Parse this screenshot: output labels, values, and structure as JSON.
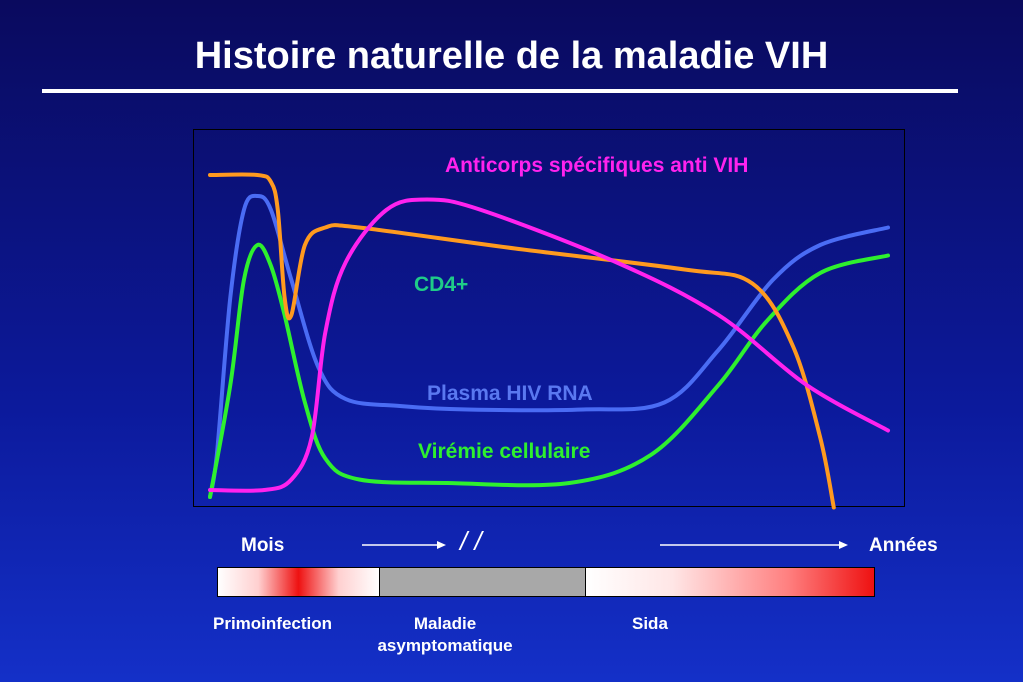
{
  "title": "Histoire naturelle de la maladie VIH",
  "chart_data": {
    "type": "line",
    "title": "Histoire naturelle de la maladie VIH",
    "xlabel": "",
    "ylabel": "",
    "x_range": [
      0,
      100
    ],
    "y_range": [
      0,
      100
    ],
    "grid": false,
    "series": [
      {
        "name": "CD4+",
        "color": "#ff9a1f",
        "points": [
          [
            0,
            90
          ],
          [
            7,
            90
          ],
          [
            9,
            88
          ],
          [
            10,
            80
          ],
          [
            11,
            55
          ],
          [
            12,
            50
          ],
          [
            14,
            70
          ],
          [
            17,
            75
          ],
          [
            22,
            75
          ],
          [
            45,
            69
          ],
          [
            70,
            63
          ],
          [
            80,
            59
          ],
          [
            86,
            41
          ],
          [
            90,
            15
          ],
          [
            92,
            -5
          ]
        ]
      },
      {
        "name": "Anticorps spécifiques anti VIH",
        "color": "#ff22ee",
        "points": [
          [
            0,
            0
          ],
          [
            8,
            0
          ],
          [
            12,
            3
          ],
          [
            15,
            15
          ],
          [
            17,
            45
          ],
          [
            20,
            65
          ],
          [
            26,
            80
          ],
          [
            32,
            83
          ],
          [
            40,
            80
          ],
          [
            60,
            65
          ],
          [
            75,
            50
          ],
          [
            88,
            30
          ],
          [
            100,
            17
          ]
        ]
      },
      {
        "name": "Plasma HIV RNA",
        "color": "#4a6cf4",
        "points": [
          [
            0,
            -2
          ],
          [
            1,
            10
          ],
          [
            3,
            55
          ],
          [
            5,
            80
          ],
          [
            7,
            84
          ],
          [
            9,
            80
          ],
          [
            12,
            60
          ],
          [
            16,
            35
          ],
          [
            20,
            26
          ],
          [
            28,
            24
          ],
          [
            38,
            23
          ],
          [
            55,
            23
          ],
          [
            67,
            25
          ],
          [
            75,
            40
          ],
          [
            83,
            60
          ],
          [
            90,
            70
          ],
          [
            100,
            75
          ]
        ]
      },
      {
        "name": "Virémie cellulaire",
        "color": "#2ef02e",
        "points": [
          [
            0,
            -2
          ],
          [
            3,
            30
          ],
          [
            5,
            60
          ],
          [
            7,
            70
          ],
          [
            9,
            64
          ],
          [
            11,
            50
          ],
          [
            14,
            25
          ],
          [
            17,
            9
          ],
          [
            22,
            3
          ],
          [
            35,
            2
          ],
          [
            53,
            2
          ],
          [
            65,
            10
          ],
          [
            75,
            30
          ],
          [
            82,
            48
          ],
          [
            90,
            62
          ],
          [
            100,
            67
          ]
        ]
      }
    ],
    "annotations": {
      "time_start": "Mois",
      "time_end": "Années",
      "break_mark": "/ /"
    },
    "phases": [
      {
        "label": "Primoinfection",
        "color": "#ee1111"
      },
      {
        "label_lines": [
          "Maladie",
          "asymptomatique"
        ],
        "color": "#a8a8a8"
      },
      {
        "label": "Sida",
        "color": "#ee1111"
      }
    ]
  }
}
